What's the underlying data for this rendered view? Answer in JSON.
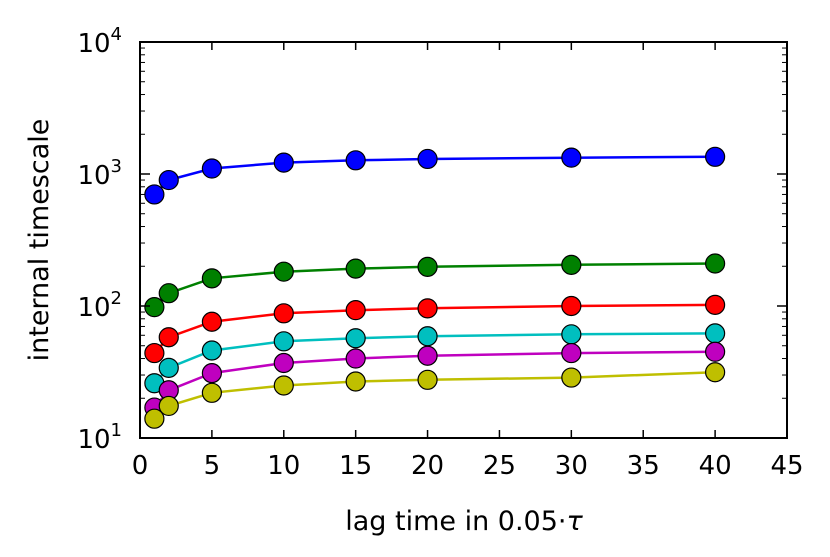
{
  "chart_data": {
    "type": "line",
    "title": "",
    "xlabel_prefix": "lag time in 0.05·",
    "xlabel_symbol": "τ",
    "ylabel": "internal timescale",
    "xlim": [
      0,
      45
    ],
    "ylim": [
      10,
      10000
    ],
    "yscale": "log",
    "x_ticks": [
      0,
      5,
      10,
      15,
      20,
      25,
      30,
      35,
      40,
      45
    ],
    "x_tick_labels": [
      "0",
      "5",
      "10",
      "15",
      "20",
      "25",
      "30",
      "35",
      "40",
      "45"
    ],
    "y_ticks": [
      {
        "value": 10,
        "base": "10",
        "exp": "1"
      },
      {
        "value": 100,
        "base": "10",
        "exp": "2"
      },
      {
        "value": 1000,
        "base": "10",
        "exp": "3"
      },
      {
        "value": 10000,
        "base": "10",
        "exp": "4"
      }
    ],
    "x": [
      1,
      2,
      5,
      10,
      15,
      20,
      30,
      40
    ],
    "series": [
      {
        "name": "blue",
        "color": "#0000ff",
        "values": [
          700,
          900,
          1100,
          1220,
          1270,
          1300,
          1330,
          1350
        ]
      },
      {
        "name": "green",
        "color": "#008000",
        "values": [
          98,
          125,
          162,
          182,
          192,
          198,
          205,
          210
        ]
      },
      {
        "name": "red",
        "color": "#ff0000",
        "values": [
          44,
          58,
          76,
          88,
          93,
          96,
          100,
          102
        ]
      },
      {
        "name": "cyan",
        "color": "#00bfbf",
        "values": [
          26,
          34,
          46,
          54,
          57,
          59,
          61,
          62
        ]
      },
      {
        "name": "magenta",
        "color": "#bf00bf",
        "values": [
          17,
          23,
          31,
          37,
          40,
          42,
          44,
          45
        ]
      },
      {
        "name": "olive",
        "color": "#bfbf00",
        "values": [
          14,
          17.5,
          22,
          25,
          26.8,
          27.6,
          28.7,
          31.5
        ]
      }
    ],
    "grid": false,
    "marker": "circle"
  }
}
